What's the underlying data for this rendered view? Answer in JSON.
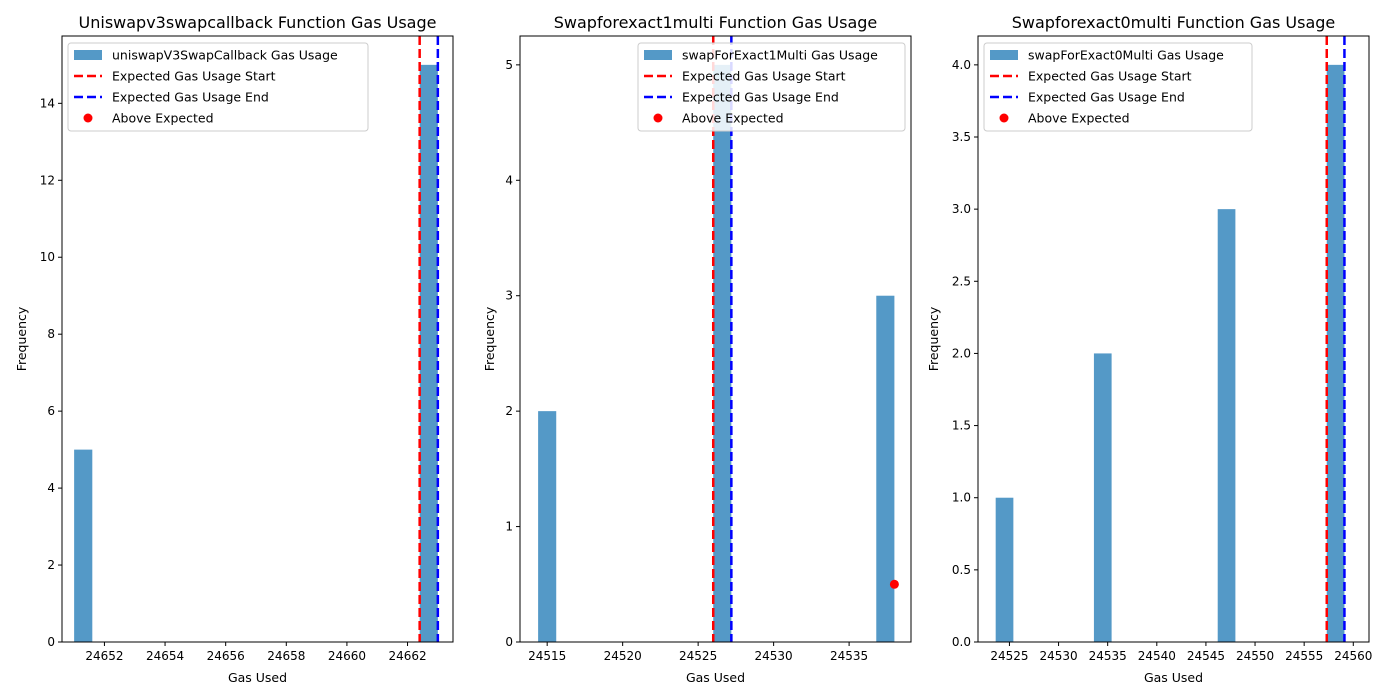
{
  "chart_data": [
    {
      "type": "histogram",
      "title": "Uniswapv3swapcallback Function Gas Usage",
      "xlabel": "Gas Used",
      "ylabel": "Frequency",
      "xlim": [
        24650.6,
        24663.5
      ],
      "ylim": [
        0,
        15.75
      ],
      "xticks": [
        24652,
        24654,
        24656,
        24658,
        24660,
        24662
      ],
      "yticks": [
        0,
        2,
        4,
        6,
        8,
        10,
        12,
        14
      ],
      "bars": [
        {
          "x0": 24651.0,
          "x1": 24651.6,
          "value": 5
        },
        {
          "x0": 24662.4,
          "x1": 24663.0,
          "value": 15
        }
      ],
      "expected_start": 24662.4,
      "expected_end": 24663.0,
      "above_expected_points": [],
      "legend": {
        "position": "top-left",
        "entries": [
          {
            "label": "uniswapV3SwapCallback Gas Usage",
            "kind": "bar"
          },
          {
            "label": "Expected Gas Usage Start",
            "kind": "start"
          },
          {
            "label": "Expected Gas Usage End",
            "kind": "end"
          },
          {
            "label": "Above Expected",
            "kind": "point"
          }
        ]
      }
    },
    {
      "type": "histogram",
      "title": "Swapforexact1multi Function Gas Usage",
      "xlabel": "Gas Used",
      "ylabel": "Frequency",
      "xlim": [
        24513.2,
        24539.1
      ],
      "ylim": [
        0,
        5.25
      ],
      "xticks": [
        24515,
        24520,
        24525,
        24530,
        24535
      ],
      "yticks": [
        0,
        1,
        2,
        3,
        4,
        5
      ],
      "bars": [
        {
          "x0": 24514.4,
          "x1": 24515.6,
          "value": 2
        },
        {
          "x0": 24526.0,
          "x1": 24527.2,
          "value": 5
        },
        {
          "x0": 24536.8,
          "x1": 24538.0,
          "value": 3
        }
      ],
      "expected_start": 24526.0,
      "expected_end": 24527.2,
      "above_expected_points": [
        {
          "x": 24538.0,
          "y": 0.5
        }
      ],
      "legend": {
        "position": "top-right",
        "entries": [
          {
            "label": "swapForExact1Multi Gas Usage",
            "kind": "bar"
          },
          {
            "label": "Expected Gas Usage Start",
            "kind": "start"
          },
          {
            "label": "Expected Gas Usage End",
            "kind": "end"
          },
          {
            "label": "Above Expected",
            "kind": "point"
          }
        ]
      }
    },
    {
      "type": "histogram",
      "title": "Swapforexact0multi Function Gas Usage",
      "xlabel": "Gas Used",
      "ylabel": "Frequency",
      "xlim": [
        24521.8,
        24561.6
      ],
      "ylim": [
        0,
        4.2
      ],
      "xticks": [
        24525,
        24530,
        24535,
        24540,
        24545,
        24550,
        24555,
        24560
      ],
      "yticks": [
        0.0,
        0.5,
        1.0,
        1.5,
        2.0,
        2.5,
        3.0,
        3.5,
        4.0
      ],
      "bars": [
        {
          "x0": 24523.6,
          "x1": 24525.4,
          "value": 1
        },
        {
          "x0": 24533.6,
          "x1": 24535.4,
          "value": 2
        },
        {
          "x0": 24546.2,
          "x1": 24548.0,
          "value": 3
        },
        {
          "x0": 24557.3,
          "x1": 24559.1,
          "value": 4
        }
      ],
      "expected_start": 24557.3,
      "expected_end": 24559.1,
      "above_expected_points": [],
      "legend": {
        "position": "top-left",
        "entries": [
          {
            "label": "swapForExact0Multi Gas Usage",
            "kind": "bar"
          },
          {
            "label": "Expected Gas Usage Start",
            "kind": "start"
          },
          {
            "label": "Expected Gas Usage End",
            "kind": "end"
          },
          {
            "label": "Above Expected",
            "kind": "point"
          }
        ]
      }
    }
  ],
  "colors": {
    "bar": "#5499c7",
    "start_line": "#ff0000",
    "end_line": "#0000ff",
    "point": "#ff0000",
    "axis": "#000000"
  }
}
